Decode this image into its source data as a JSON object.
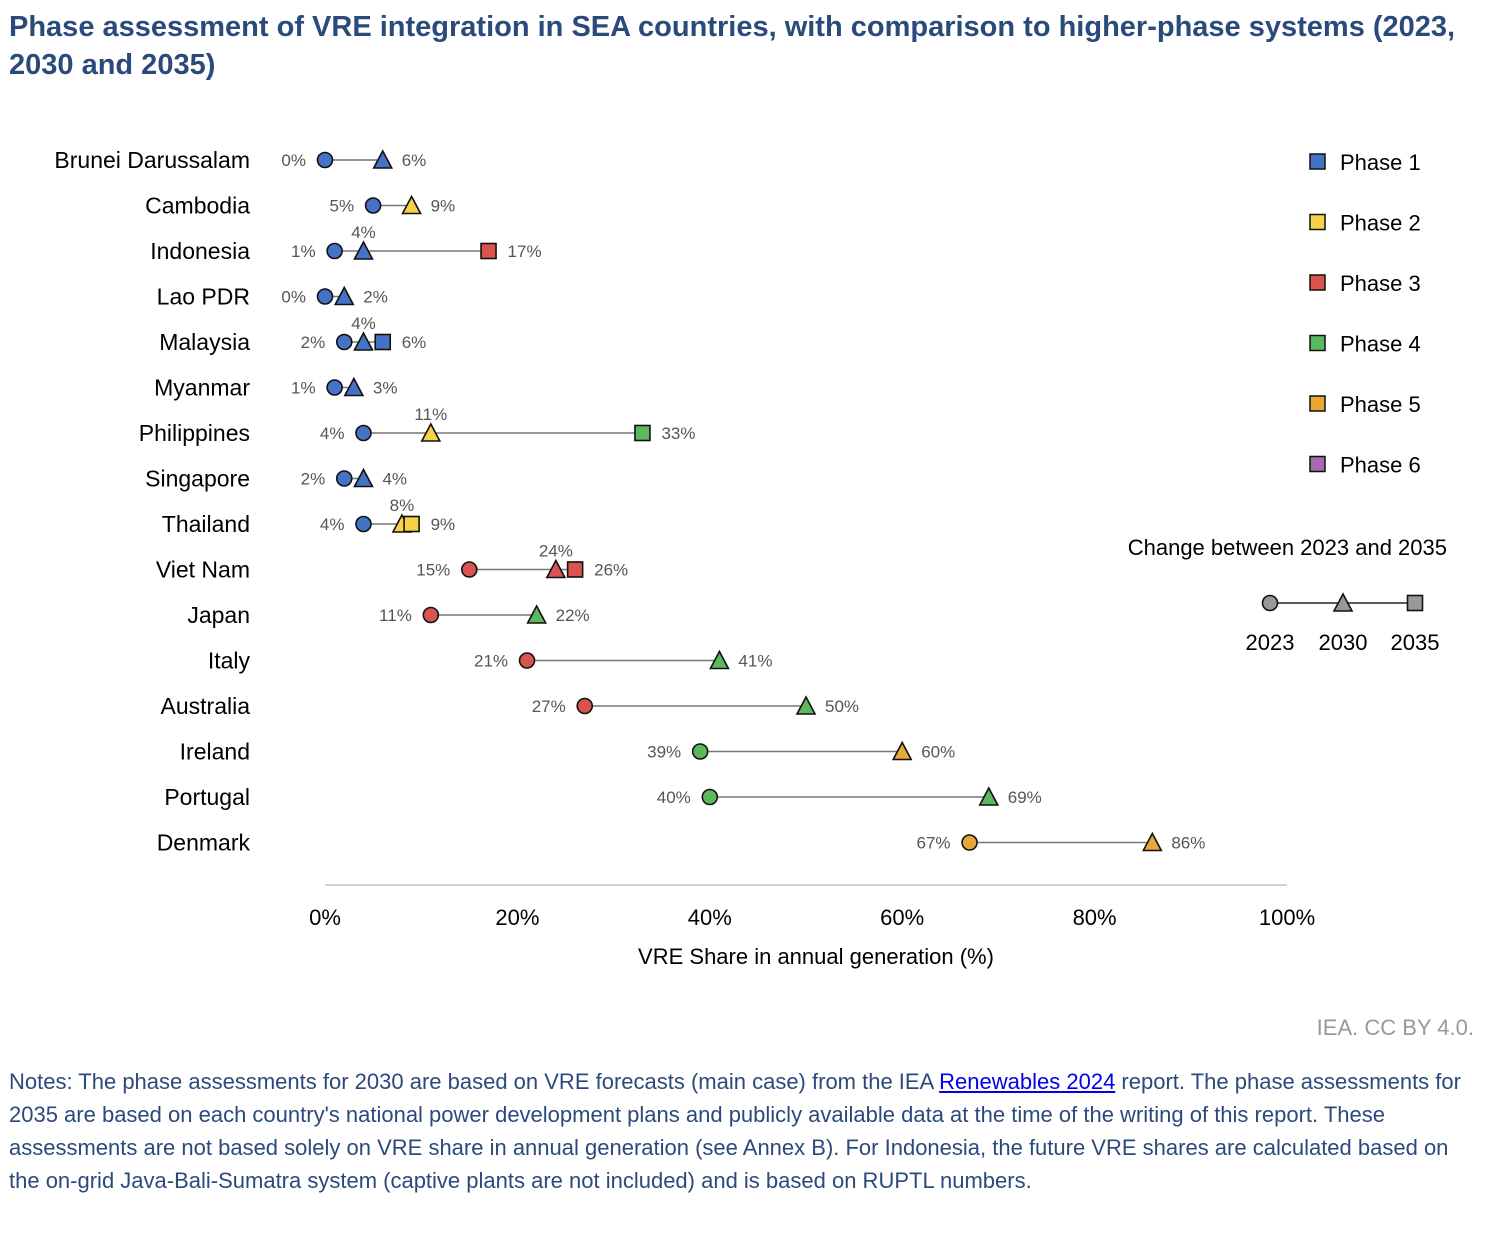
{
  "chart_data": {
    "type": "scatter",
    "subtype": "dumbbell",
    "title": "Phase assessment of VRE integration in SEA countries, with comparison to higher-phase systems (2023, 2030 and 2035)",
    "xlabel": "VRE Share in annual generation (%)",
    "ylabel": "",
    "xlim": [
      0,
      100
    ],
    "xticks": [
      "0%",
      "20%",
      "40%",
      "60%",
      "80%",
      "100%"
    ],
    "xtick_values": [
      0,
      20,
      40,
      60,
      80,
      100
    ],
    "grid": false,
    "phase_colors": {
      "1": "#4472c4",
      "2": "#f6d248",
      "3": "#d9534f",
      "4": "#5cb85c",
      "5": "#e8a838",
      "6": "#a46bb3"
    },
    "marker_key": {
      "2023": "circle",
      "2030": "triangle",
      "2035": "square"
    },
    "countries": [
      {
        "name": "Brunei Darussalam",
        "points": [
          {
            "year": 2023,
            "value": 0,
            "phase": 1,
            "label": "0%"
          },
          {
            "year": 2030,
            "value": 6,
            "phase": 1,
            "label": "6%"
          }
        ]
      },
      {
        "name": "Cambodia",
        "points": [
          {
            "year": 2023,
            "value": 5,
            "phase": 1,
            "label": "5%"
          },
          {
            "year": 2030,
            "value": 9,
            "phase": 2,
            "label": "9%"
          }
        ]
      },
      {
        "name": "Indonesia",
        "points": [
          {
            "year": 2023,
            "value": 1,
            "phase": 1,
            "label": "1%"
          },
          {
            "year": 2030,
            "value": 4,
            "phase": 1,
            "label": "4%"
          },
          {
            "year": 2035,
            "value": 17,
            "phase": 3,
            "label": "17%"
          }
        ]
      },
      {
        "name": "Lao PDR",
        "points": [
          {
            "year": 2023,
            "value": 0,
            "phase": 1,
            "label": "0%"
          },
          {
            "year": 2030,
            "value": 2,
            "phase": 1,
            "label": "2%"
          }
        ]
      },
      {
        "name": "Malaysia",
        "points": [
          {
            "year": 2023,
            "value": 2,
            "phase": 1,
            "label": "2%"
          },
          {
            "year": 2030,
            "value": 4,
            "phase": 1,
            "label": "4%"
          },
          {
            "year": 2035,
            "value": 6,
            "phase": 1,
            "label": "6%"
          }
        ]
      },
      {
        "name": "Myanmar",
        "points": [
          {
            "year": 2023,
            "value": 1,
            "phase": 1,
            "label": "1%"
          },
          {
            "year": 2030,
            "value": 3,
            "phase": 1,
            "label": "3%"
          }
        ]
      },
      {
        "name": "Philippines",
        "points": [
          {
            "year": 2023,
            "value": 4,
            "phase": 1,
            "label": "4%"
          },
          {
            "year": 2030,
            "value": 11,
            "phase": 2,
            "label": "11%"
          },
          {
            "year": 2035,
            "value": 33,
            "phase": 4,
            "label": "33%"
          }
        ]
      },
      {
        "name": "Singapore",
        "points": [
          {
            "year": 2023,
            "value": 2,
            "phase": 1,
            "label": "2%"
          },
          {
            "year": 2030,
            "value": 4,
            "phase": 1,
            "label": "4%"
          }
        ]
      },
      {
        "name": "Thailand",
        "points": [
          {
            "year": 2023,
            "value": 4,
            "phase": 1,
            "label": "4%"
          },
          {
            "year": 2030,
            "value": 8,
            "phase": 2,
            "label": "8%"
          },
          {
            "year": 2035,
            "value": 9,
            "phase": 2,
            "label": "9%"
          }
        ]
      },
      {
        "name": "Viet Nam",
        "points": [
          {
            "year": 2023,
            "value": 15,
            "phase": 3,
            "label": "15%"
          },
          {
            "year": 2030,
            "value": 24,
            "phase": 3,
            "label": "24%"
          },
          {
            "year": 2035,
            "value": 26,
            "phase": 3,
            "label": "26%"
          }
        ]
      },
      {
        "name": "Japan",
        "points": [
          {
            "year": 2023,
            "value": 11,
            "phase": 3,
            "label": "11%"
          },
          {
            "year": 2030,
            "value": 22,
            "phase": 4,
            "label": "22%"
          }
        ]
      },
      {
        "name": "Italy",
        "points": [
          {
            "year": 2023,
            "value": 21,
            "phase": 3,
            "label": "21%"
          },
          {
            "year": 2030,
            "value": 41,
            "phase": 4,
            "label": "41%"
          }
        ]
      },
      {
        "name": "Australia",
        "points": [
          {
            "year": 2023,
            "value": 27,
            "phase": 3,
            "label": "27%"
          },
          {
            "year": 2030,
            "value": 50,
            "phase": 4,
            "label": "50%"
          }
        ]
      },
      {
        "name": "Ireland",
        "points": [
          {
            "year": 2023,
            "value": 39,
            "phase": 4,
            "label": "39%"
          },
          {
            "year": 2030,
            "value": 60,
            "phase": 5,
            "label": "60%"
          }
        ]
      },
      {
        "name": "Portugal",
        "points": [
          {
            "year": 2023,
            "value": 40,
            "phase": 4,
            "label": "40%"
          },
          {
            "year": 2030,
            "value": 69,
            "phase": 4,
            "label": "69%"
          }
        ]
      },
      {
        "name": "Denmark",
        "points": [
          {
            "year": 2023,
            "value": 67,
            "phase": 5,
            "label": "67%"
          },
          {
            "year": 2030,
            "value": 86,
            "phase": 5,
            "label": "86%"
          }
        ]
      }
    ],
    "legend": {
      "placement": "right",
      "phases": [
        {
          "label": "Phase 1",
          "phase": 1
        },
        {
          "label": "Phase 2",
          "phase": 2
        },
        {
          "label": "Phase 3",
          "phase": 3
        },
        {
          "label": "Phase 4",
          "phase": 4
        },
        {
          "label": "Phase 5",
          "phase": 5
        },
        {
          "label": "Phase 6",
          "phase": 6
        }
      ],
      "change_title": "Change between 2023 and 2035",
      "change_years": [
        "2023",
        "2030",
        "2035"
      ],
      "change_color": "#999999"
    }
  },
  "credit": "IEA. CC BY 4.0.",
  "notes": {
    "prefix": "Notes: The phase assessments for 2030 are based on VRE forecasts (main case) from the IEA ",
    "link_text": "Renewables 2024",
    "suffix": " report. The phase assessments for 2035 are based on each country's national power development plans and publicly available data at the time of the writing of this report. These assessments are not based solely on VRE share in annual generation (see Annex B). For Indonesia, the future VRE shares are calculated based on the on-grid Java-Bali-Sumatra system (captive plants are not included) and is based on RUPTL numbers."
  }
}
